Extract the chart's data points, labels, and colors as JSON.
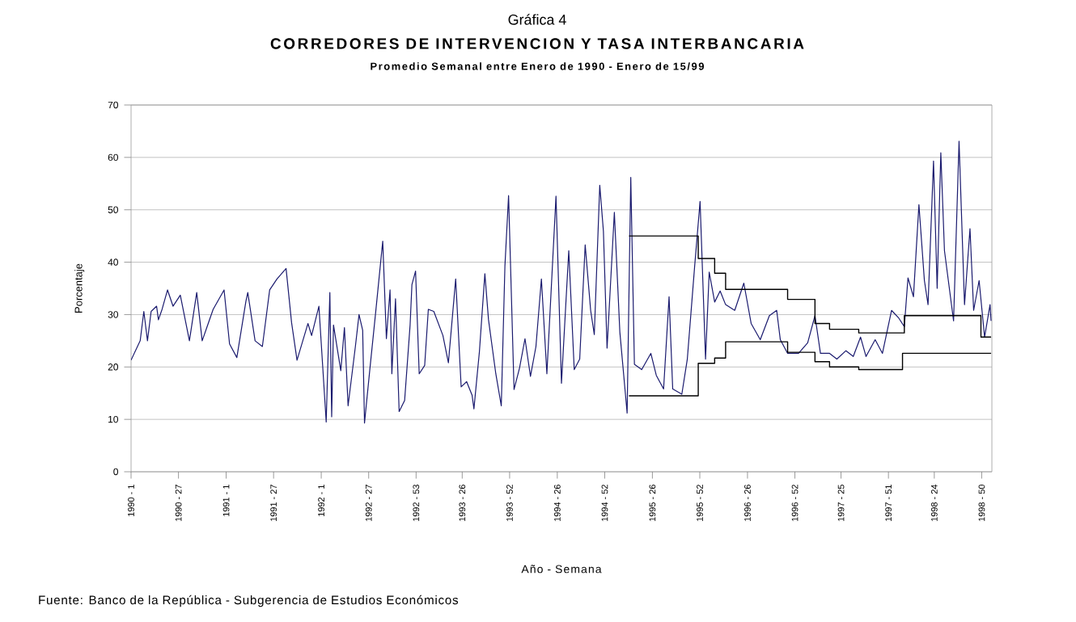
{
  "chart_data": {
    "type": "line",
    "title": "CORREDORES DE INTERVENCION Y TASA INTERBANCARIA",
    "subtitle": "Promedio Semanal entre Enero de 1990 - Enero de 15/99",
    "xlabel": "Año - Semana",
    "ylabel": "Porcentaje",
    "annotations": [
      "Gráfica 4",
      "Fuente: Banco de la República - Subgerencia de Estudios Económicos"
    ],
    "xlim": [
      "1990-01-01",
      "1999-01-18"
    ],
    "xticks": [
      {
        "value": "1990-01-01",
        "label": "1990 - 1"
      },
      {
        "value": "1990-07-02",
        "label": "1990 - 27"
      },
      {
        "value": "1991-01-01",
        "label": "1991 - 1"
      },
      {
        "value": "1991-07-02",
        "label": "1991 - 27"
      },
      {
        "value": "1992-01-01",
        "label": "1992 - 1"
      },
      {
        "value": "1992-07-01",
        "label": "1992 - 27"
      },
      {
        "value": "1992-12-30",
        "label": "1992 - 53"
      },
      {
        "value": "1993-06-25",
        "label": "1993 - 26"
      },
      {
        "value": "1993-12-24",
        "label": "1993 - 52"
      },
      {
        "value": "1994-06-25",
        "label": "1994 - 26"
      },
      {
        "value": "1994-12-24",
        "label": "1994 - 52"
      },
      {
        "value": "1995-06-25",
        "label": "1995 - 26"
      },
      {
        "value": "1995-12-24",
        "label": "1995 - 52"
      },
      {
        "value": "1996-06-24",
        "label": "1996 - 26"
      },
      {
        "value": "1996-12-23",
        "label": "1996 - 52"
      },
      {
        "value": "1997-06-18",
        "label": "1997 - 25"
      },
      {
        "value": "1997-12-17",
        "label": "1997 - 51"
      },
      {
        "value": "1998-06-11",
        "label": "1998 - 24"
      },
      {
        "value": "1998-12-10",
        "label": "1998 - 50"
      }
    ],
    "ylim": [
      0,
      70
    ],
    "yticks": [
      0,
      10,
      20,
      30,
      40,
      50,
      60,
      70
    ],
    "grid": "y",
    "line_style": "solid",
    "series": [
      {
        "color": "#1a1a6e",
        "x": [
          "1990-01-01",
          "1990-02-05",
          "1990-02-19",
          "1990-03-05",
          "1990-03-19",
          "1990-04-09",
          "1990-04-16",
          "1990-04-30",
          "1990-05-21",
          "1990-06-11",
          "1990-07-09",
          "1990-08-13",
          "1990-09-10",
          "1990-10-01",
          "1990-11-12",
          "1990-12-24",
          "1991-01-14",
          "1991-02-11",
          "1991-03-18",
          "1991-03-25",
          "1991-04-22",
          "1991-05-20",
          "1991-06-17",
          "1991-07-15",
          "1991-08-19",
          "1991-09-09",
          "1991-09-30",
          "1991-11-11",
          "1991-11-25",
          "1991-12-23",
          "1992-01-20",
          "1992-02-03",
          "1992-02-10",
          "1992-02-17",
          "1992-03-16",
          "1992-03-30",
          "1992-04-13",
          "1992-05-11",
          "1992-05-25",
          "1992-06-08",
          "1992-06-15",
          "1992-07-06",
          "1992-07-27",
          "1992-08-24",
          "1992-09-07",
          "1992-09-21",
          "1992-09-28",
          "1992-10-12",
          "1992-10-26",
          "1992-11-16",
          "1992-12-07",
          "1992-12-14",
          "1992-12-28",
          "1993-01-11",
          "1993-02-01",
          "1993-02-15",
          "1993-03-08",
          "1993-04-12",
          "1993-05-03",
          "1993-05-31",
          "1993-06-21",
          "1993-07-12",
          "1993-08-02",
          "1993-08-09",
          "1993-08-30",
          "1993-09-20",
          "1993-10-04",
          "1993-11-01",
          "1993-11-22",
          "1993-12-06",
          "1993-12-20",
          "1994-01-10",
          "1994-01-31",
          "1994-02-21",
          "1994-03-14",
          "1994-04-04",
          "1994-04-25",
          "1994-05-16",
          "1994-06-20",
          "1994-07-11",
          "1994-08-08",
          "1994-08-29",
          "1994-09-19",
          "1994-10-10",
          "1994-10-31",
          "1994-11-14",
          "1994-12-05",
          "1994-12-19",
          "1995-01-02",
          "1995-01-30",
          "1995-02-20",
          "1995-03-20",
          "1995-04-03",
          "1995-04-17",
          "1995-05-15",
          "1995-06-19",
          "1995-07-10",
          "1995-08-07",
          "1995-08-28",
          "1995-09-11",
          "1995-10-16",
          "1995-11-06",
          "1995-12-04",
          "1995-12-25",
          "1996-01-15",
          "1996-01-29",
          "1996-02-19",
          "1996-03-11",
          "1996-04-01",
          "1996-05-06",
          "1996-06-10",
          "1996-07-08",
          "1996-08-12",
          "1996-09-16",
          "1996-10-14",
          "1996-10-28",
          "1996-11-25",
          "1997-01-06",
          "1997-02-10",
          "1997-03-10",
          "1997-03-31",
          "1997-05-05",
          "1997-06-02",
          "1997-07-07",
          "1997-08-04",
          "1997-09-01",
          "1997-09-22",
          "1997-10-27",
          "1997-11-24",
          "1997-12-29",
          "1998-01-26",
          "1998-02-16",
          "1998-03-02",
          "1998-03-23",
          "1998-04-13",
          "1998-05-04",
          "1998-05-18",
          "1998-06-08",
          "1998-06-22",
          "1998-07-06",
          "1998-07-20",
          "1998-08-24",
          "1998-09-14",
          "1998-10-05",
          "1998-10-26",
          "1998-11-09",
          "1998-11-30",
          "1998-12-21",
          "1999-01-11",
          "1999-01-15"
        ],
        "values": [
          21.3,
          25,
          30.6,
          25,
          30.6,
          31.6,
          29,
          31,
          34.7,
          31.6,
          33.7,
          25,
          34.2,
          25,
          31,
          34.7,
          24.4,
          21.8,
          32.6,
          34.2,
          25,
          23.9,
          34.7,
          36.8,
          38.8,
          28.5,
          21.3,
          28.3,
          26,
          31.6,
          9.5,
          34.2,
          10.5,
          28,
          19.3,
          27.5,
          12.6,
          23.9,
          30,
          27,
          9.3,
          19.8,
          30,
          44,
          25.4,
          34.7,
          18.7,
          33,
          11.5,
          13.6,
          28,
          35.7,
          38.3,
          18.7,
          20.3,
          31,
          30.6,
          26,
          20.8,
          36.8,
          16.2,
          17.2,
          14.6,
          12,
          22.9,
          37.8,
          29,
          18.7,
          12.6,
          39.3,
          52.7,
          15.7,
          19.8,
          25.4,
          18.2,
          23.9,
          36.8,
          18.7,
          52.6,
          16.9,
          42.2,
          19.5,
          21.5,
          43.3,
          30.8,
          26.2,
          54.7,
          45.9,
          23.6,
          49.5,
          26.7,
          11.2,
          56.2,
          20.5,
          19.5,
          22.6,
          18.4,
          15.8,
          33.4,
          15.8,
          14.8,
          21.5,
          39.1,
          51.6,
          21.5,
          38.1,
          32.4,
          34.5,
          31.9,
          30.8,
          36,
          28.3,
          25.2,
          29.8,
          30.8,
          25.2,
          22.6,
          22.6,
          24.6,
          29.8,
          22.6,
          22.6,
          21.5,
          23.1,
          22,
          25.7,
          22,
          25.2,
          22.6,
          30.8,
          29.3,
          27.7,
          37,
          33.4,
          51,
          36.5,
          31.9,
          59.3,
          35,
          60.9,
          42.2,
          28.8,
          63.1,
          31.9,
          46.4,
          30.8,
          36.5,
          25.7,
          31.9,
          28.8
        ]
      },
      {
        "type": "step",
        "color": "#000000",
        "x": [
          "1995-03-27",
          "1995-12-18",
          "1996-02-19",
          "1996-04-01",
          "1996-11-25",
          "1997-03-10",
          "1997-05-05",
          "1997-08-25",
          "1998-02-16",
          "1998-12-07",
          "1999-01-15"
        ],
        "values": [
          45,
          40.7,
          37.9,
          34.8,
          32.9,
          28.3,
          27.2,
          26.5,
          29.8,
          25.7,
          25.7
        ]
      },
      {
        "type": "step",
        "color": "#000000",
        "x": [
          "1995-03-27",
          "1995-12-18",
          "1996-02-19",
          "1996-04-01",
          "1996-11-25",
          "1997-03-10",
          "1997-05-05",
          "1997-08-25",
          "1998-02-09",
          "1999-01-15"
        ],
        "values": [
          14.5,
          20.7,
          21.7,
          24.8,
          22.8,
          21,
          20,
          19.5,
          22.6,
          22.6
        ]
      }
    ]
  }
}
